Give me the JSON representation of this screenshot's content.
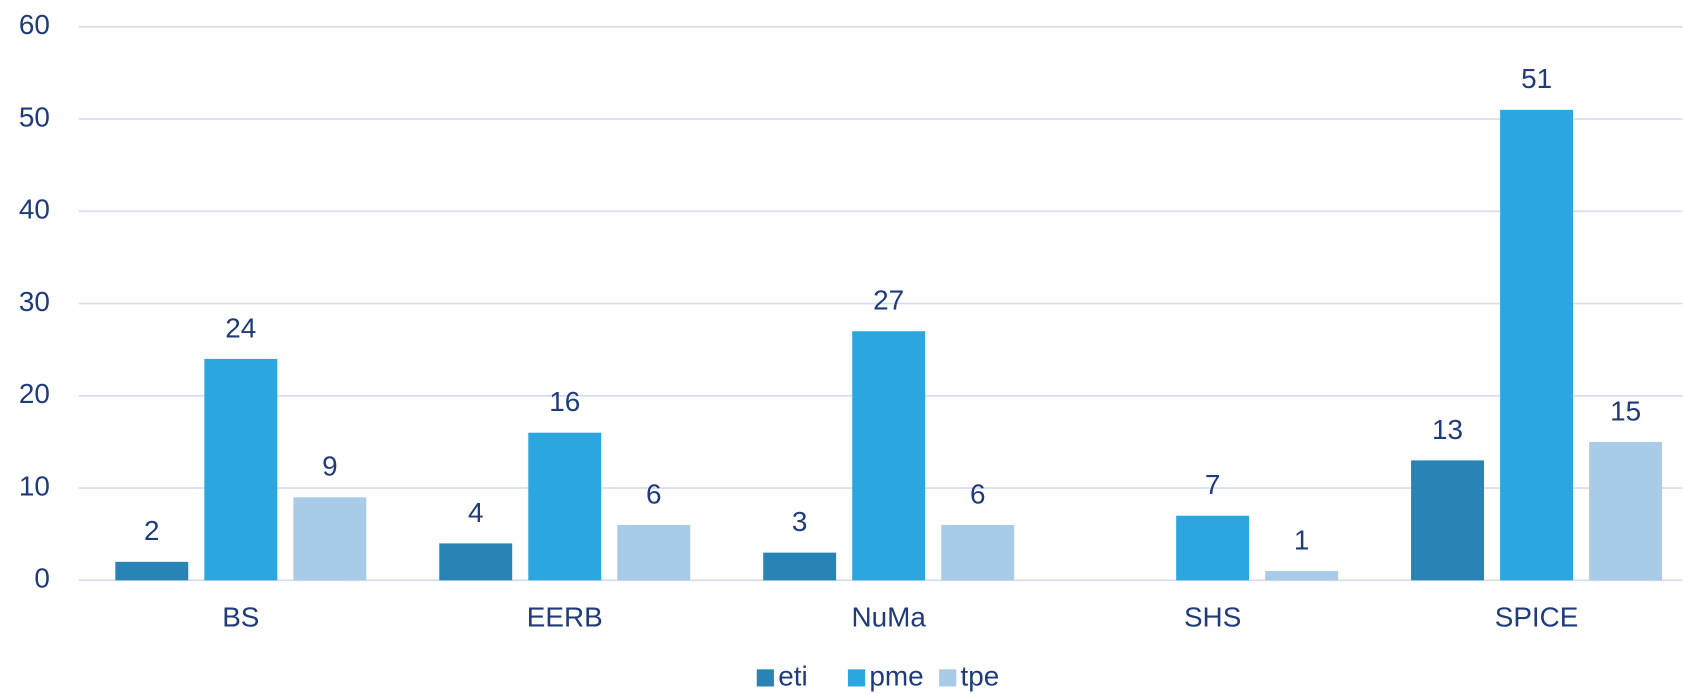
{
  "chart_data": {
    "type": "bar",
    "categories": [
      "BS",
      "EERB",
      "NuMa",
      "SHS",
      "SPICE"
    ],
    "series": [
      {
        "name": "eti",
        "color": "#2784b5",
        "values": [
          2,
          4,
          3,
          null,
          13
        ]
      },
      {
        "name": "pme",
        "color": "#2ba6de",
        "values": [
          24,
          16,
          27,
          7,
          51
        ]
      },
      {
        "name": "tpe",
        "color": "#a8cbe7",
        "values": [
          9,
          6,
          6,
          1,
          15
        ]
      }
    ],
    "ylim": [
      0,
      60
    ],
    "yticks": [
      0,
      10,
      20,
      30,
      40,
      50,
      60
    ],
    "grid": true,
    "legend": "bottom"
  }
}
